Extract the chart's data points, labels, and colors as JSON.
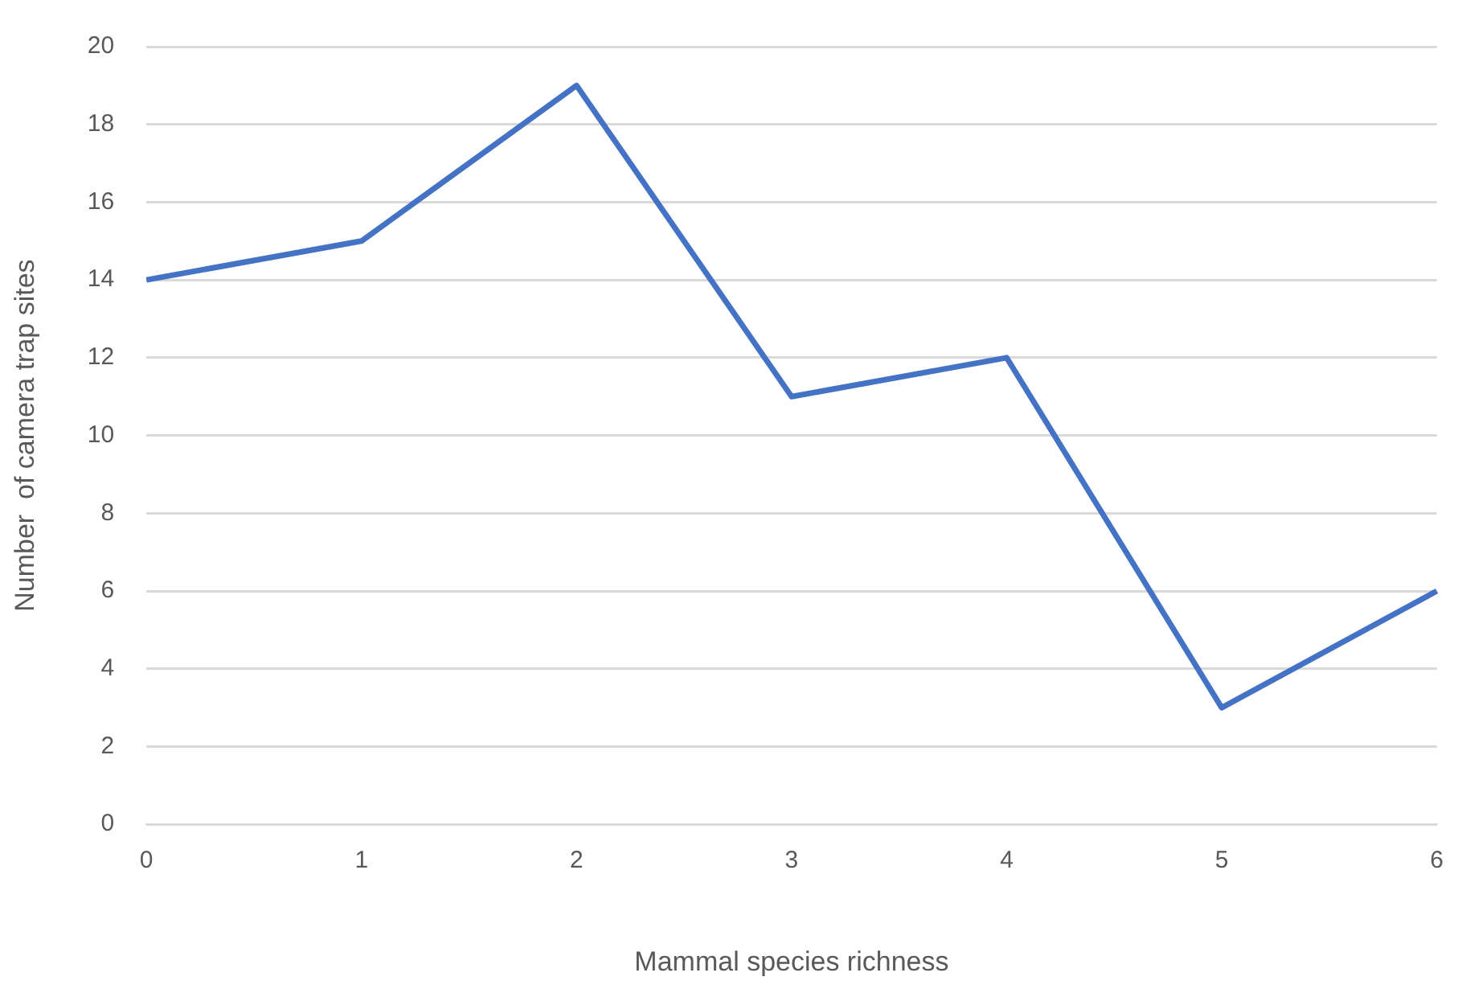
{
  "chart_data": {
    "type": "line",
    "xlabel": "Mammal species richness",
    "ylabel": "Number  of camera trap sites",
    "categories": [
      "0",
      "1",
      "2",
      "3",
      "4",
      "5",
      "6"
    ],
    "series": [
      {
        "color": "#4472c4",
        "values": [
          14,
          15,
          19,
          11,
          12,
          3,
          6
        ]
      }
    ],
    "ylim": [
      0,
      20
    ],
    "yticks": [
      0,
      2,
      4,
      6,
      8,
      10,
      12,
      14,
      16,
      18,
      20
    ],
    "grid": "y",
    "legend": false,
    "marker": "none",
    "line_style": "solid"
  }
}
